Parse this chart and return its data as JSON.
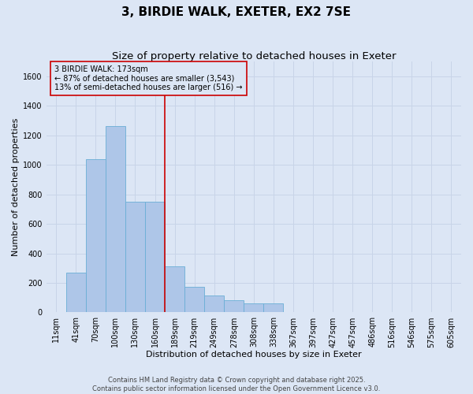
{
  "title": "3, BIRDIE WALK, EXETER, EX2 7SE",
  "subtitle": "Size of property relative to detached houses in Exeter",
  "xlabel": "Distribution of detached houses by size in Exeter",
  "ylabel": "Number of detached properties",
  "categories": [
    "11sqm",
    "41sqm",
    "70sqm",
    "100sqm",
    "130sqm",
    "160sqm",
    "189sqm",
    "219sqm",
    "249sqm",
    "278sqm",
    "308sqm",
    "338sqm",
    "367sqm",
    "397sqm",
    "427sqm",
    "457sqm",
    "486sqm",
    "516sqm",
    "546sqm",
    "575sqm",
    "605sqm"
  ],
  "bar_heights": [
    0,
    270,
    1040,
    1260,
    750,
    750,
    310,
    175,
    115,
    80,
    60,
    60,
    0,
    0,
    0,
    0,
    0,
    0,
    0,
    0,
    0
  ],
  "bar_color": "#aec6e8",
  "bar_edgecolor": "#6aaed6",
  "grid_color": "#c8d4e8",
  "background_color": "#dce6f5",
  "vline_x_index": 5.5,
  "vline_color": "#cc0000",
  "annotation_line1": "3 BIRDIE WALK: 173sqm",
  "annotation_line2": "← 87% of detached houses are smaller (3,543)",
  "annotation_line3": "13% of semi-detached houses are larger (516) →",
  "annotation_box_color": "#cc0000",
  "ylim": [
    0,
    1700
  ],
  "yticks": [
    0,
    200,
    400,
    600,
    800,
    1000,
    1200,
    1400,
    1600
  ],
  "footnote": "Contains HM Land Registry data © Crown copyright and database right 2025.\nContains public sector information licensed under the Open Government Licence v3.0.",
  "title_fontsize": 11,
  "subtitle_fontsize": 9.5,
  "axis_label_fontsize": 8,
  "tick_fontsize": 7,
  "annotation_fontsize": 7,
  "footnote_fontsize": 6
}
